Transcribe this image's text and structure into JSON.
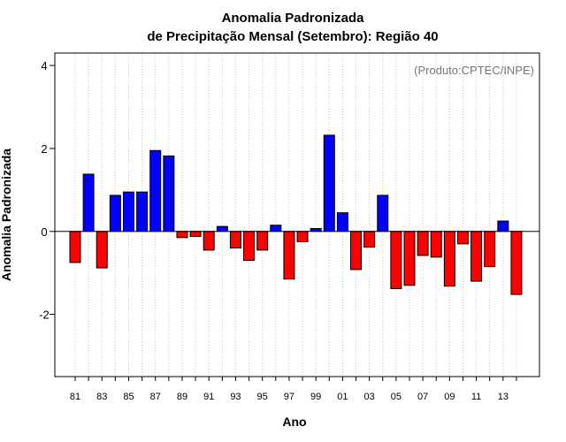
{
  "chart_data": {
    "type": "bar",
    "title": "Anomalia Padronizada",
    "subtitle": "de Precipitação Mensal (Setembro): Região 40",
    "xlabel": "Ano",
    "ylabel": "Anomalia Padronizada",
    "annotation": "(Produto:CPTEC/INPE)",
    "ylim": [
      -3.5,
      4.3
    ],
    "yticks": [
      -2,
      0,
      2,
      4
    ],
    "grid": "vertical-dotted",
    "positive_color": "#0000ff",
    "negative_color": "#ff0000",
    "categories": [
      "81",
      "82",
      "83",
      "84",
      "85",
      "86",
      "87",
      "88",
      "89",
      "90",
      "91",
      "92",
      "93",
      "94",
      "95",
      "96",
      "97",
      "98",
      "99",
      "00",
      "01",
      "02",
      "03",
      "04",
      "05",
      "06",
      "07",
      "08",
      "09",
      "10",
      "11",
      "12",
      "13",
      "14"
    ],
    "xtick_labels": [
      "81",
      "83",
      "85",
      "87",
      "89",
      "91",
      "93",
      "95",
      "97",
      "99",
      "01",
      "03",
      "05",
      "07",
      "09",
      "11",
      "13"
    ],
    "values": [
      -0.75,
      1.38,
      -0.88,
      0.87,
      0.95,
      0.95,
      1.95,
      1.82,
      -0.15,
      -0.12,
      -0.45,
      0.12,
      -0.4,
      -0.7,
      -0.45,
      0.15,
      -1.15,
      -0.25,
      0.07,
      2.32,
      0.45,
      -0.92,
      -0.38,
      0.87,
      -1.38,
      -1.3,
      -0.58,
      -0.62,
      -1.32,
      -0.3,
      -1.2,
      -0.85,
      0.25,
      -1.52
    ]
  }
}
